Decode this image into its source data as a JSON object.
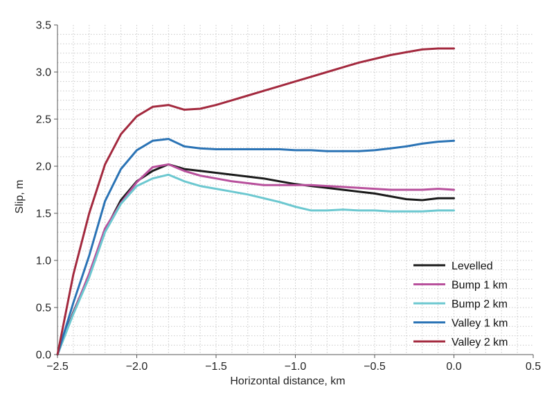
{
  "chart_data": {
    "type": "line",
    "title": "",
    "xlabel": "Horizontal distance, km",
    "ylabel": "Slip, m",
    "xlim": [
      -2.5,
      0.5
    ],
    "ylim": [
      0.0,
      3.5
    ],
    "xticks": [
      -2.5,
      -2.0,
      -1.5,
      -1.0,
      -0.5,
      0.0,
      0.5
    ],
    "xtick_labels": [
      "−2.5",
      "−2.0",
      "−1.5",
      "−1.0",
      "−0.5",
      "0.0",
      "0.5"
    ],
    "yticks": [
      0.0,
      0.5,
      1.0,
      1.5,
      2.0,
      2.5,
      3.0,
      3.5
    ],
    "ytick_labels": [
      "0.0",
      "0.5",
      "1.0",
      "1.5",
      "2.0",
      "2.5",
      "3.0",
      "3.5"
    ],
    "grid": true,
    "grid_style": "dotted minor grid",
    "legend_position": "bottom-right",
    "series": [
      {
        "name": "Levelled",
        "color": "#1a1a1a",
        "x": [
          -2.5,
          -2.4,
          -2.3,
          -2.2,
          -2.1,
          -2.0,
          -1.9,
          -1.8,
          -1.7,
          -1.6,
          -1.5,
          -1.4,
          -1.3,
          -1.2,
          -1.1,
          -1.0,
          -0.9,
          -0.8,
          -0.7,
          -0.6,
          -0.5,
          -0.4,
          -0.3,
          -0.2,
          -0.1,
          0.0
        ],
        "y": [
          0.0,
          0.45,
          0.85,
          1.32,
          1.64,
          1.84,
          1.95,
          2.02,
          1.97,
          1.95,
          1.93,
          1.91,
          1.89,
          1.87,
          1.84,
          1.81,
          1.79,
          1.77,
          1.75,
          1.73,
          1.71,
          1.68,
          1.65,
          1.64,
          1.66,
          1.66
        ]
      },
      {
        "name": "Bump 1 km",
        "color": "#b8509c",
        "x": [
          -2.5,
          -2.4,
          -2.3,
          -2.2,
          -2.1,
          -2.0,
          -1.9,
          -1.8,
          -1.7,
          -1.6,
          -1.5,
          -1.4,
          -1.3,
          -1.2,
          -1.1,
          -1.0,
          -0.9,
          -0.8,
          -0.7,
          -0.6,
          -0.5,
          -0.4,
          -0.3,
          -0.2,
          -0.1,
          0.0
        ],
        "y": [
          0.0,
          0.44,
          0.86,
          1.34,
          1.61,
          1.83,
          1.99,
          2.02,
          1.95,
          1.9,
          1.87,
          1.84,
          1.82,
          1.8,
          1.8,
          1.8,
          1.8,
          1.79,
          1.78,
          1.77,
          1.76,
          1.75,
          1.75,
          1.75,
          1.76,
          1.75
        ]
      },
      {
        "name": "Bump 2 km",
        "color": "#6cc8d0",
        "x": [
          -2.5,
          -2.4,
          -2.3,
          -2.2,
          -2.1,
          -2.0,
          -1.9,
          -1.8,
          -1.7,
          -1.6,
          -1.5,
          -1.4,
          -1.3,
          -1.2,
          -1.1,
          -1.0,
          -0.9,
          -0.8,
          -0.7,
          -0.6,
          -0.5,
          -0.4,
          -0.3,
          -0.2,
          -0.1,
          0.0
        ],
        "y": [
          0.0,
          0.43,
          0.82,
          1.3,
          1.6,
          1.79,
          1.87,
          1.91,
          1.84,
          1.79,
          1.76,
          1.73,
          1.7,
          1.66,
          1.62,
          1.57,
          1.53,
          1.53,
          1.54,
          1.53,
          1.53,
          1.52,
          1.52,
          1.52,
          1.53,
          1.53
        ]
      },
      {
        "name": "Valley 1 km",
        "color": "#2a73b5",
        "x": [
          -2.5,
          -2.4,
          -2.3,
          -2.2,
          -2.1,
          -2.0,
          -1.9,
          -1.8,
          -1.7,
          -1.6,
          -1.5,
          -1.4,
          -1.3,
          -1.2,
          -1.1,
          -1.0,
          -0.9,
          -0.8,
          -0.7,
          -0.6,
          -0.5,
          -0.4,
          -0.3,
          -0.2,
          -0.1,
          0.0
        ],
        "y": [
          0.0,
          0.55,
          1.05,
          1.63,
          1.97,
          2.17,
          2.27,
          2.29,
          2.21,
          2.19,
          2.18,
          2.18,
          2.18,
          2.18,
          2.18,
          2.17,
          2.17,
          2.16,
          2.16,
          2.16,
          2.17,
          2.19,
          2.21,
          2.24,
          2.26,
          2.27
        ]
      },
      {
        "name": "Valley 2 km",
        "color": "#a3293e",
        "x": [
          -2.5,
          -2.4,
          -2.3,
          -2.2,
          -2.1,
          -2.0,
          -1.9,
          -1.8,
          -1.7,
          -1.6,
          -1.5,
          -1.4,
          -1.3,
          -1.2,
          -1.1,
          -1.0,
          -0.9,
          -0.8,
          -0.7,
          -0.6,
          -0.5,
          -0.4,
          -0.3,
          -0.2,
          -0.1,
          0.0
        ],
        "y": [
          0.0,
          0.85,
          1.5,
          2.02,
          2.34,
          2.53,
          2.63,
          2.65,
          2.6,
          2.61,
          2.65,
          2.7,
          2.75,
          2.8,
          2.85,
          2.9,
          2.95,
          3.0,
          3.05,
          3.1,
          3.14,
          3.18,
          3.21,
          3.24,
          3.25,
          3.25
        ]
      }
    ]
  }
}
